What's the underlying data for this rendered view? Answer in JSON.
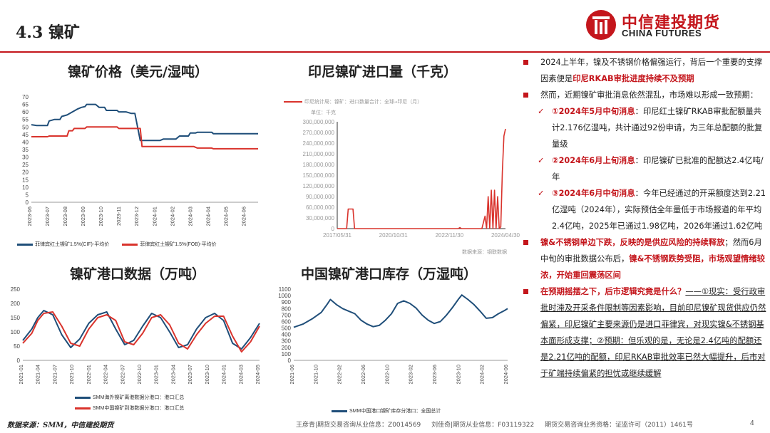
{
  "header": {
    "section_title": "4.3 镍矿",
    "logo_cn": "中信建投期货",
    "logo_en": "CHINA FUTURES"
  },
  "colors": {
    "brand_red": "#c4161c",
    "navy": "#1f4e79",
    "chart_red": "#d9332c"
  },
  "panels": {
    "ore_price": {
      "title": "镍矿价格（美元/湿吨）"
    },
    "indo_import": {
      "title": "印尼镍矿进口量（千克）"
    },
    "port_data": {
      "title": "镍矿港口数据（万吨）"
    },
    "port_stock": {
      "title": "中国镍矿港口库存（万湿吨）"
    }
  },
  "chart_data": [
    {
      "type": "line",
      "title": "镍矿价格（美元/湿吨）",
      "ylim": [
        0,
        70
      ],
      "yticks": [
        "0",
        "5",
        "10",
        "15",
        "20",
        "25",
        "30",
        "35",
        "40",
        "45",
        "50",
        "55",
        "60",
        "65",
        "70"
      ],
      "xticks": [
        "2023-06",
        "2023-07",
        "2023-08",
        "2023-09",
        "2023-10",
        "2023-11",
        "2023-12",
        "2024-01",
        "2024-02",
        "2024-03",
        "2024-04",
        "2024-05",
        "2024-06"
      ],
      "series": [
        {
          "name": "菲律宾红土镍矿1.5%(CIF)-平均价",
          "color": "#1f4e79",
          "points": [
            [
              0,
              51.5
            ],
            [
              0.3,
              51
            ],
            [
              0.9,
              51
            ],
            [
              1,
              54
            ],
            [
              1.3,
              55
            ],
            [
              1.6,
              55
            ],
            [
              1.7,
              57
            ],
            [
              2,
              58
            ],
            [
              2.3,
              60
            ],
            [
              2.6,
              62
            ],
            [
              2.8,
              63
            ],
            [
              3,
              63.5
            ],
            [
              3.1,
              65
            ],
            [
              3.6,
              65
            ],
            [
              3.8,
              63
            ],
            [
              4.1,
              63
            ],
            [
              4.2,
              61
            ],
            [
              4.8,
              61
            ],
            [
              4.9,
              60
            ],
            [
              5.3,
              60
            ],
            [
              5.6,
              59
            ],
            [
              5.8,
              59
            ],
            [
              6.1,
              41
            ],
            [
              7.2,
              41
            ],
            [
              7.4,
              42
            ],
            [
              8.1,
              42
            ],
            [
              8.3,
              44
            ],
            [
              8.8,
              44
            ],
            [
              8.9,
              46
            ],
            [
              9.2,
              46
            ],
            [
              9.3,
              46.5
            ],
            [
              10.1,
              46.5
            ],
            [
              10.2,
              45.5
            ],
            [
              11.2,
              45.5
            ],
            [
              11.5,
              45.5
            ],
            [
              12.7,
              45.5
            ]
          ]
        },
        {
          "name": "菲律宾红土镍矿1.5%(FOB)-平均价",
          "color": "#d9332c",
          "points": [
            [
              0,
              43.5
            ],
            [
              0.9,
              43.5
            ],
            [
              1,
              44
            ],
            [
              2,
              44
            ],
            [
              2.1,
              47.5
            ],
            [
              2.3,
              47.5
            ],
            [
              2.4,
              49
            ],
            [
              3,
              49
            ],
            [
              3.1,
              50
            ],
            [
              4.8,
              50
            ],
            [
              4.9,
              49
            ],
            [
              6.1,
              49
            ],
            [
              6.2,
              37
            ],
            [
              7.2,
              37
            ],
            [
              7.3,
              37
            ],
            [
              8.8,
              37
            ],
            [
              8.9,
              37
            ],
            [
              9.1,
              37
            ],
            [
              9.3,
              36
            ],
            [
              10.1,
              36
            ],
            [
              10.2,
              35.5
            ],
            [
              12.7,
              35.5
            ]
          ]
        }
      ]
    },
    {
      "type": "line",
      "title": "印尼镍矿进口量（千克）",
      "legend_text": "印尼统计局：镍矿：进口数量合计：全球→印尼（月）",
      "unit_text": "单位：千克",
      "source_text": "数据来源：钢联数据",
      "ylim": [
        0,
        300000000
      ],
      "yticks": [
        "0",
        "30,000,000",
        "60,000,000",
        "90,000,000",
        "120,000,000",
        "150,000,000",
        "180,000,000",
        "210,000,000",
        "240,000,000",
        "270,000,000",
        "300,000,000"
      ],
      "xticks": [
        "2017/05/31",
        "2020/10/31",
        "2022/11/30",
        "2024/04/30"
      ],
      "series": [
        {
          "name": "印尼统计局：镍矿：进口数量合计：全球→印尼（月）",
          "color": "#d9332c",
          "points": [
            [
              0,
              0
            ],
            [
              6,
              0
            ],
            [
              7,
              55000000
            ],
            [
              10,
              55000000
            ],
            [
              11,
              0
            ],
            [
              77,
              0
            ],
            [
              78,
              3000000
            ],
            [
              79,
              0
            ],
            [
              92,
              0
            ],
            [
              94,
              35000000
            ],
            [
              95,
              0
            ],
            [
              96,
              90000000
            ],
            [
              97,
              0
            ],
            [
              98,
              108000000
            ],
            [
              99,
              0
            ],
            [
              100,
              108000000
            ],
            [
              101,
              0
            ],
            [
              102,
              90000000
            ],
            [
              103,
              0
            ],
            [
              104,
              5000000
            ],
            [
              105,
              160000000
            ],
            [
              106,
              260000000
            ],
            [
              107,
              280000000
            ]
          ]
        }
      ]
    },
    {
      "type": "line",
      "title": "镍矿港口数据（万吨）",
      "ylim": [
        0,
        250
      ],
      "yticks": [
        "0",
        "50",
        "100",
        "150",
        "200",
        "250"
      ],
      "xticks": [
        "2021-01",
        "2021-04",
        "2021-07",
        "2021-10",
        "2022-01",
        "2022-04",
        "2022-07",
        "2022-10",
        "2023-01",
        "2023-04",
        "2023-07",
        "2023-10",
        "2024-01",
        "2024-03",
        "2024-05"
      ],
      "series": [
        {
          "name": "SMM海外镍矿离港数据分港口：港口汇总",
          "color": "#1f4e79",
          "points": [
            [
              0,
              70
            ],
            [
              3,
              110
            ],
            [
              5,
              150
            ],
            [
              7,
              175
            ],
            [
              10,
              160
            ],
            [
              13,
              90
            ],
            [
              16,
              45
            ],
            [
              19,
              75
            ],
            [
              22,
              130
            ],
            [
              25,
              160
            ],
            [
              28,
              170
            ],
            [
              31,
              110
            ],
            [
              34,
              55
            ],
            [
              37,
              70
            ],
            [
              40,
              120
            ],
            [
              43,
              165
            ],
            [
              46,
              150
            ],
            [
              49,
              100
            ],
            [
              52,
              45
            ],
            [
              55,
              55
            ],
            [
              58,
              110
            ],
            [
              61,
              150
            ],
            [
              64,
              165
            ],
            [
              67,
              140
            ],
            [
              70,
              60
            ],
            [
              73,
              40
            ],
            [
              76,
              80
            ],
            [
              79,
              130
            ]
          ]
        },
        {
          "name": "SMM中国镍矿到港数据分港口：港口汇总",
          "color": "#d9332c",
          "points": [
            [
              0,
              60
            ],
            [
              3,
              95
            ],
            [
              5,
              140
            ],
            [
              7,
              165
            ],
            [
              10,
              170
            ],
            [
              13,
              120
            ],
            [
              16,
              60
            ],
            [
              19,
              50
            ],
            [
              22,
              110
            ],
            [
              25,
              150
            ],
            [
              28,
              160
            ],
            [
              31,
              140
            ],
            [
              34,
              65
            ],
            [
              37,
              55
            ],
            [
              40,
              95
            ],
            [
              43,
              150
            ],
            [
              46,
              160
            ],
            [
              49,
              125
            ],
            [
              52,
              60
            ],
            [
              55,
              40
            ],
            [
              58,
              90
            ],
            [
              61,
              130
            ],
            [
              64,
              155
            ],
            [
              67,
              155
            ],
            [
              70,
              85
            ],
            [
              73,
              30
            ],
            [
              76,
              65
            ],
            [
              79,
              120
            ]
          ]
        }
      ]
    },
    {
      "type": "line",
      "title": "中国镍矿港口库存（万湿吨）",
      "ylim": [
        0,
        1100
      ],
      "yticks": [
        "0",
        "100",
        "200",
        "300",
        "400",
        "500",
        "600",
        "700",
        "800",
        "900",
        "1000",
        "1100"
      ],
      "xticks": [
        "2021-06",
        "2021-10",
        "2022-02",
        "2022-06",
        "2022-10",
        "2023-02",
        "2023-06",
        "2023-10",
        "2024-02",
        "2024-06"
      ],
      "series": [
        {
          "name": "SMM中国港口镍矿库存分港口：全国总计",
          "color": "#1f4e79",
          "points": [
            [
              0,
              510
            ],
            [
              3,
              560
            ],
            [
              6,
              640
            ],
            [
              9,
              740
            ],
            [
              11,
              870
            ],
            [
              12,
              940
            ],
            [
              14,
              860
            ],
            [
              16,
              800
            ],
            [
              18,
              760
            ],
            [
              20,
              720
            ],
            [
              22,
              620
            ],
            [
              24,
              560
            ],
            [
              26,
              520
            ],
            [
              28,
              540
            ],
            [
              30,
              620
            ],
            [
              32,
              720
            ],
            [
              34,
              880
            ],
            [
              36,
              920
            ],
            [
              38,
              880
            ],
            [
              40,
              810
            ],
            [
              42,
              700
            ],
            [
              44,
              620
            ],
            [
              46,
              570
            ],
            [
              48,
              600
            ],
            [
              50,
              700
            ],
            [
              52,
              820
            ],
            [
              54,
              950
            ],
            [
              55,
              1010
            ],
            [
              57,
              940
            ],
            [
              59,
              860
            ],
            [
              61,
              760
            ],
            [
              63,
              650
            ],
            [
              65,
              660
            ],
            [
              67,
              720
            ],
            [
              69,
              770
            ],
            [
              70,
              800
            ]
          ]
        }
      ]
    }
  ],
  "analysis": {
    "p1_a": "2024上半年，镍及不锈钢价格偏强运行，背后一个重要的支撑因素便是",
    "p1_b": "印尼RKAB审批进度持续不及预期",
    "p2": "然而，近期镍矿审批消息依然混乱，市场难以形成一致预期：",
    "c1_a": "①2024年5月中旬消息",
    "c1_b": "：印尼红土镍矿RKAB审批配额量共计2.176亿湿吨，共计通过92份申请，为三年总配额的批复量级",
    "c2_a": "②2024年6月上旬消息",
    "c2_b": "：印尼镍矿已批准的配额达2.4亿吨/年",
    "c3_a": "③2024年6月中旬消息",
    "c3_b": "：今年已经通过的开采额度达到2.21亿湿吨（2024年），实际预估全年量低于市场报道的年平均2.4亿吨，2025年已通过1.98亿吨，2026年通过1.62亿吨",
    "p3_a": "镍&不锈钢单边下跌，反映的是供应风险的持续释放",
    "p3_b": "；然而6月中旬的审批数据公布后，",
    "p3_c": "镍&不锈钢跌势受阻，市场观望情绪较浓，开始重回震荡区间",
    "p4_a": "在预期摇摆之下，后市逻辑究竟是什么？",
    "p4_b": "——①现实：受行政审批时滞及开采条件限制等因素影响，目前印尼镍矿现货供应仍然偏紧，印尼镍矿主要来源仍是进口菲律宾，对现实镍&不锈钢基本面形成支撑；②预期：但乐观的是，无论是2.4亿吨的配额还是2.21亿吨的配额，印尼RKAB审批效率已然大幅提升，后市对于矿端持续偏紧的担忧或继续缓解"
  },
  "footer": {
    "source": "数据来源：SMM，中信建投期货",
    "cert1": "王彦青|期货交易咨询从业信息：Z0014569",
    "cert2": "刘佳奇|期货从业信息：F03119322",
    "cert3": "期货交易咨询业务资格：证监许可（2011）1461号",
    "page": "4"
  }
}
